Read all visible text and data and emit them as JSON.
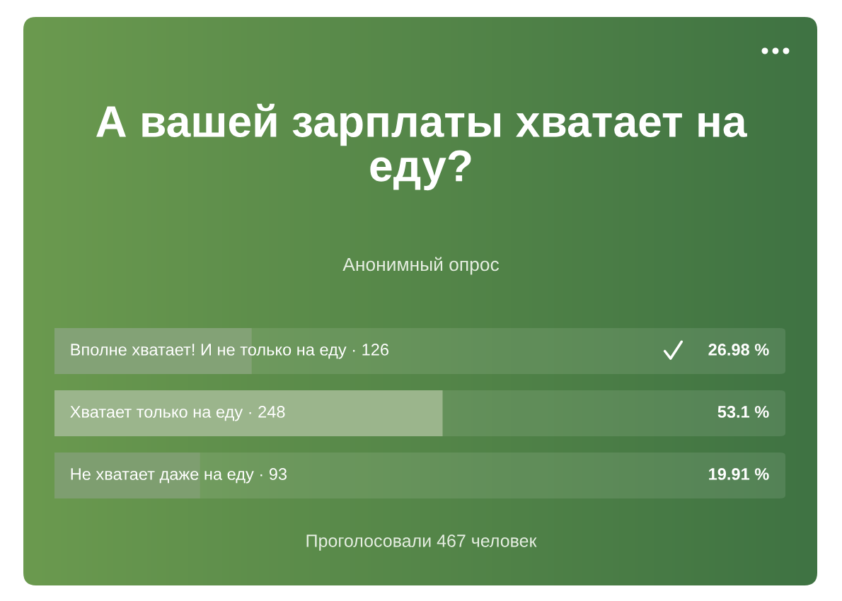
{
  "chart_data": {
    "type": "bar",
    "orientation": "horizontal",
    "title": "А вашей зарплаты хватает на еду?",
    "subtitle": "Анонимный опрос",
    "categories": [
      "Вполне хватает! И не только на еду · 126",
      "Хватает только на еду · 248",
      "Не хватает даже на еду · 93"
    ],
    "values": [
      26.98,
      53.1,
      19.91
    ],
    "value_labels": [
      "26.98 %",
      "53.1 %",
      "19.91 %"
    ],
    "colors": [
      "#83a276",
      "#9bb58c",
      "#7e9e70"
    ],
    "xlim": [
      0,
      100
    ],
    "annotations": [
      "Проголосовали 467 человек"
    ]
  }
}
